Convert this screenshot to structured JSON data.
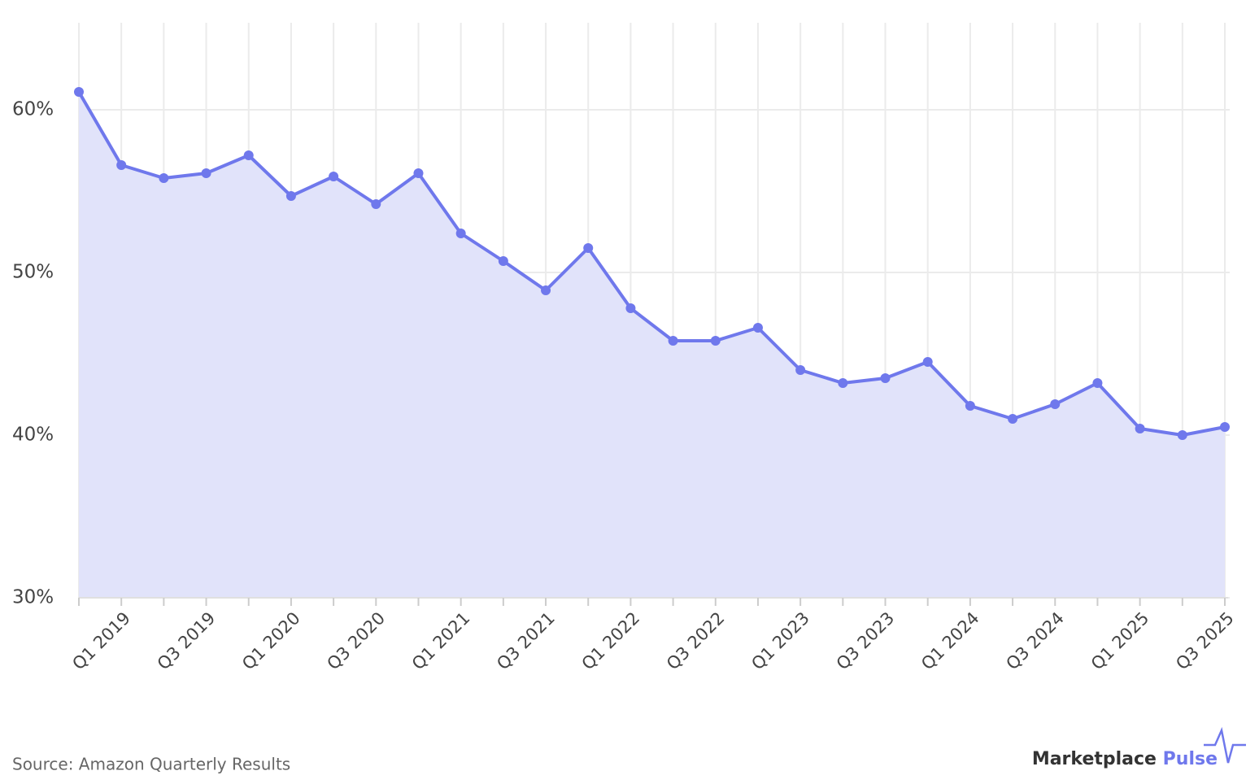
{
  "chart_data": {
    "type": "area",
    "categories": [
      null,
      "Q1 2019",
      null,
      "Q3 2019",
      null,
      "Q1 2020",
      null,
      "Q3 2020",
      null,
      "Q1 2021",
      null,
      "Q3 2021",
      null,
      "Q1 2022",
      null,
      "Q3 2022",
      null,
      "Q1 2023",
      null,
      "Q3 2023",
      null,
      "Q1 2024",
      null,
      "Q3 2024",
      null,
      "Q1 2025",
      null,
      "Q3 2025"
    ],
    "series": [
      {
        "color": "#6f78ec",
        "fill": "#e1e3fa",
        "values": [
          61.1,
          56.6,
          55.8,
          56.1,
          57.2,
          54.7,
          55.9,
          54.2,
          56.1,
          52.4,
          50.7,
          48.9,
          51.5,
          47.8,
          45.8,
          45.8,
          46.6,
          44.0,
          43.2,
          43.5,
          44.5,
          41.8,
          41.0,
          41.9,
          43.2,
          40.4,
          40.0,
          40.5
        ]
      }
    ],
    "ylim": [
      30,
      65
    ],
    "yticks": [
      {
        "value": 30,
        "label": "30%"
      },
      {
        "value": 40,
        "label": "40%"
      },
      {
        "value": 50,
        "label": "50%"
      },
      {
        "value": 60,
        "label": "60%"
      }
    ],
    "grid": true,
    "source": "Source: Amazon Quarterly Results",
    "brand": {
      "name": "Marketplace",
      "accent": "Pulse"
    }
  }
}
